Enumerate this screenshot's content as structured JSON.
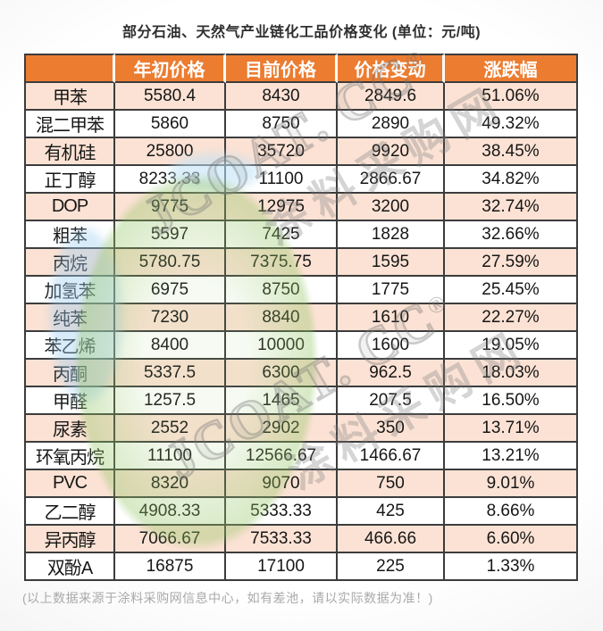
{
  "page": {
    "title": "部分石油、天然气产业链化工品价格变化 (单位：元/吨)",
    "footnote": "(以上数据来源于涂料采购网信息中心，如有差池，请以实际数据为准！)"
  },
  "chart_data": {
    "type": "table",
    "title": "部分石油、天然气产业链化工品价格变化",
    "unit": "元/吨",
    "columns": [
      "",
      "年初价格",
      "目前价格",
      "价格变动",
      "涨跌幅"
    ],
    "rows": [
      [
        "甲苯",
        "5580.4",
        "8430",
        "2849.6",
        "51.06%"
      ],
      [
        "混二甲苯",
        "5860",
        "8750",
        "2890",
        "49.32%"
      ],
      [
        "有机硅",
        "25800",
        "35720",
        "9920",
        "38.45%"
      ],
      [
        "正丁醇",
        "8233.33",
        "11100",
        "2866.67",
        "34.82%"
      ],
      [
        "DOP",
        "9775",
        "12975",
        "3200",
        "32.74%"
      ],
      [
        "粗苯",
        "5597",
        "7425",
        "1828",
        "32.66%"
      ],
      [
        "丙烷",
        "5780.75",
        "7375.75",
        "1595",
        "27.59%"
      ],
      [
        "加氢苯",
        "6975",
        "8750",
        "1775",
        "25.45%"
      ],
      [
        "纯苯",
        "7230",
        "8840",
        "1610",
        "22.27%"
      ],
      [
        "苯乙烯",
        "8400",
        "10000",
        "1600",
        "19.05%"
      ],
      [
        "丙酮",
        "5337.5",
        "6300",
        "962.5",
        "18.03%"
      ],
      [
        "甲醛",
        "1257.5",
        "1465",
        "207.5",
        "16.50%"
      ],
      [
        "尿素",
        "2552",
        "2902",
        "350",
        "13.71%"
      ],
      [
        "环氧丙烷",
        "11100",
        "12566.67",
        "1466.67",
        "13.21%"
      ],
      [
        "PVC",
        "8320",
        "9070",
        "750",
        "9.01%"
      ],
      [
        "乙二醇",
        "4908.33",
        "5333.33",
        "425",
        "8.66%"
      ],
      [
        "异丙醇",
        "7066.67",
        "7533.33",
        "466.66",
        "6.60%"
      ],
      [
        "双酚A",
        "16875",
        "17100",
        "225",
        "1.33%"
      ]
    ]
  },
  "watermark": {
    "brand": "JCOAT. CC",
    "registered": "®",
    "site_name": "涂料采购网"
  },
  "colors": {
    "header_bg": "#EC7C30",
    "header_text": "#FFFFFF",
    "row_alt_bg": "#FBE2D4",
    "row_bg": "#FFFFFF",
    "border": "#3C3C3C",
    "cell_text": "#161616",
    "title_text": "#2F2F2F",
    "footnote_text": "#A9A9A9"
  }
}
